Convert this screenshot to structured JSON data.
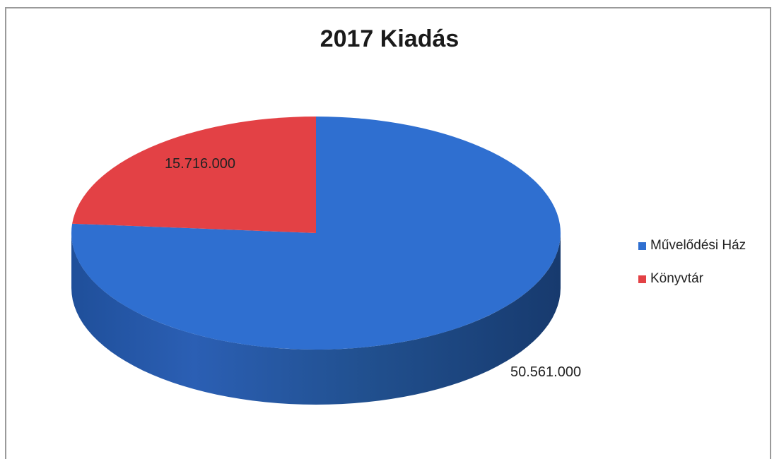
{
  "chart_data": {
    "type": "pie",
    "title": "2017 Kiadás",
    "three_d": true,
    "legend_position": "right",
    "series": [
      {
        "categories": [
          "Művelődési Ház",
          "Könyvtár"
        ],
        "values": [
          50561000,
          15716000
        ],
        "labels": [
          "50.561.000",
          "15.716.000"
        ],
        "colors": [
          "#2f6fd0",
          "#e34145"
        ]
      }
    ]
  },
  "legend": {
    "items": [
      {
        "label": "Művelődési Ház",
        "color": "#2f6fd0"
      },
      {
        "label": "Könyvtár",
        "color": "#e34145"
      }
    ]
  }
}
